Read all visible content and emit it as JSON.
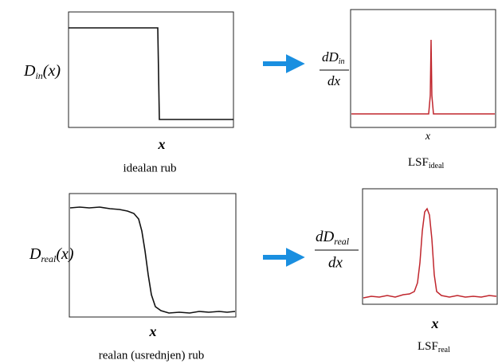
{
  "panels": [
    {
      "label": {
        "base": "D",
        "sub": "in",
        "arg": "(x)"
      },
      "axis": "x",
      "caption": "idealan rub"
    },
    {
      "label": {
        "num_base": "dD",
        "num_sub": "in",
        "den": "dx"
      },
      "axis": "x",
      "caption": {
        "base": "LSF",
        "sub": "ideal"
      }
    },
    {
      "label": {
        "base": "D",
        "sub": "real",
        "arg": "(x)"
      },
      "axis": "x",
      "caption": "realan (usrednjen) rub"
    },
    {
      "label": {
        "num_base": "dD",
        "num_sub": "real",
        "den": "dx"
      },
      "axis": "x",
      "caption": {
        "base": "LSF",
        "sub": "real"
      }
    }
  ]
}
